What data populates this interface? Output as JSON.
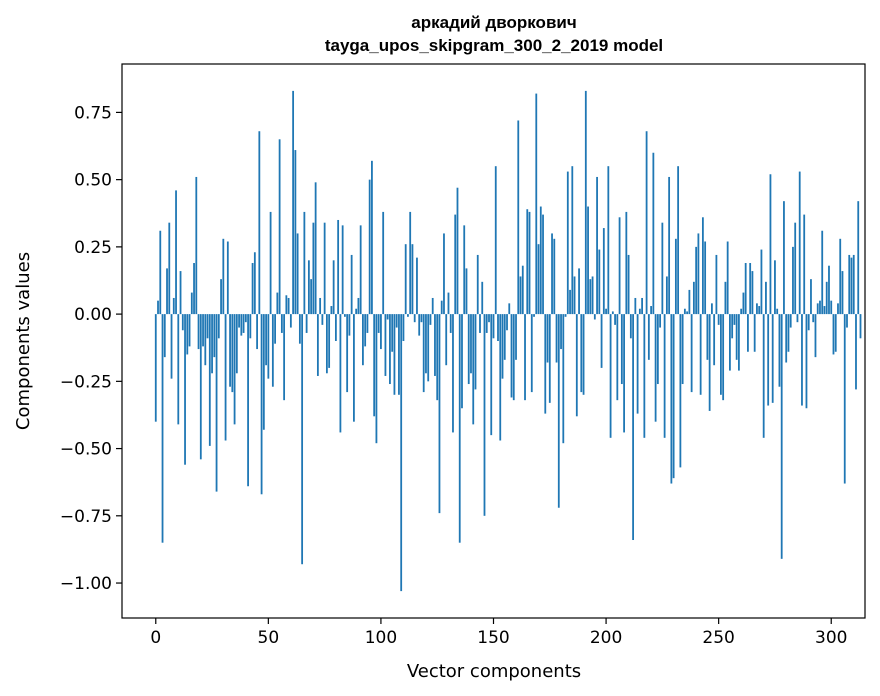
{
  "chart_data": {
    "type": "bar",
    "title": "аркадий дворкович",
    "subtitle": "tayga_upos_skipgram_300_2_2019 model",
    "xlabel": "Vector components",
    "ylabel": "Components values",
    "xlim": [
      -15,
      315
    ],
    "ylim": [
      -1.13,
      0.93
    ],
    "xticks": [
      0,
      50,
      100,
      150,
      200,
      250,
      300
    ],
    "yticks": [
      -1.0,
      -0.75,
      -0.5,
      -0.25,
      0.0,
      0.25,
      0.5,
      0.75
    ],
    "xtick_labels": [
      "0",
      "50",
      "100",
      "150",
      "200",
      "250",
      "300"
    ],
    "ytick_labels": [
      "−1.00",
      "−0.75",
      "−0.50",
      "−0.25",
      "0.00",
      "0.25",
      "0.50",
      "0.75"
    ],
    "grid": false,
    "bar_color": "#1f77b4",
    "x_start": 0,
    "values": [
      -0.4,
      0.05,
      0.31,
      -0.85,
      -0.16,
      0.17,
      0.34,
      -0.24,
      0.06,
      0.46,
      -0.41,
      0.16,
      -0.06,
      -0.56,
      -0.15,
      -0.12,
      0.08,
      0.19,
      0.51,
      -0.13,
      -0.54,
      -0.12,
      -0.19,
      -0.09,
      -0.49,
      -0.22,
      -0.16,
      -0.66,
      -0.09,
      0.13,
      0.28,
      -0.47,
      0.27,
      -0.27,
      -0.29,
      -0.41,
      -0.22,
      -0.05,
      -0.08,
      -0.07,
      -0.03,
      -0.64,
      -0.09,
      0.19,
      0.23,
      -0.13,
      0.68,
      -0.67,
      -0.43,
      -0.19,
      -0.24,
      0.38,
      -0.27,
      -0.11,
      0.08,
      0.65,
      -0.07,
      -0.32,
      0.07,
      0.06,
      -0.05,
      0.83,
      0.61,
      0.3,
      -0.11,
      -0.93,
      0.38,
      -0.07,
      0.2,
      0.13,
      0.34,
      0.49,
      -0.23,
      0.06,
      -0.04,
      0.34,
      -0.22,
      -0.2,
      0.03,
      0.2,
      -0.1,
      0.35,
      -0.44,
      0.33,
      -0.01,
      -0.29,
      -0.08,
      0.22,
      -0.4,
      0.02,
      0.06,
      0.33,
      -0.19,
      -0.12,
      -0.07,
      0.5,
      0.57,
      -0.38,
      -0.48,
      -0.07,
      -0.13,
      0.38,
      -0.23,
      -0.02,
      -0.26,
      -0.14,
      -0.3,
      -0.05,
      -0.3,
      -1.03,
      -0.1,
      0.26,
      -0.01,
      0.38,
      0.26,
      -0.03,
      0.21,
      -0.08,
      -0.03,
      -0.29,
      -0.22,
      -0.25,
      -0.04,
      0.06,
      -0.23,
      -0.32,
      -0.74,
      0.05,
      0.3,
      -0.19,
      0.08,
      -0.07,
      -0.44,
      0.37,
      0.47,
      -0.85,
      -0.35,
      0.33,
      0.17,
      -0.26,
      -0.22,
      -0.41,
      -0.28,
      0.22,
      -0.07,
      0.12,
      -0.75,
      -0.07,
      -0.03,
      -0.45,
      -0.09,
      0.55,
      -0.1,
      -0.47,
      -0.24,
      -0.17,
      -0.06,
      0.04,
      -0.31,
      -0.32,
      -0.17,
      0.72,
      0.14,
      0.18,
      -0.32,
      0.39,
      0.38,
      -0.29,
      -0.01,
      0.82,
      0.26,
      0.4,
      0.37,
      -0.37,
      -0.18,
      -0.33,
      0.3,
      0.28,
      -0.18,
      -0.72,
      -0.13,
      -0.48,
      -0.01,
      0.53,
      0.09,
      0.55,
      0.14,
      -0.38,
      0.17,
      -0.29,
      -0.3,
      0.83,
      0.4,
      0.13,
      0.14,
      -0.02,
      0.51,
      0.24,
      -0.2,
      0.32,
      0.02,
      0.55,
      -0.46,
      0.01,
      -0.04,
      -0.32,
      0.36,
      -0.26,
      -0.44,
      0.38,
      0.22,
      -0.09,
      -0.84,
      0.06,
      -0.37,
      0.02,
      0.06,
      -0.46,
      0.68,
      -0.17,
      0.03,
      0.6,
      -0.4,
      -0.26,
      -0.05,
      0.34,
      -0.46,
      0.14,
      0.51,
      -0.63,
      -0.61,
      0.28,
      0.55,
      -0.57,
      -0.26,
      0.02,
      0.01,
      0.09,
      -0.29,
      0.12,
      0.25,
      0.3,
      -0.3,
      0.36,
      0.27,
      -0.17,
      -0.36,
      0.04,
      -0.19,
      0.22,
      -0.04,
      -0.3,
      -0.32,
      0.12,
      0.27,
      -0.21,
      -0.09,
      -0.04,
      -0.17,
      -0.21,
      0.02,
      0.08,
      0.19,
      -0.14,
      0.19,
      0.16,
      -0.14,
      0.04,
      0.03,
      0.24,
      -0.46,
      0.12,
      -0.34,
      0.52,
      -0.33,
      0.2,
      0.02,
      -0.27,
      -0.91,
      0.42,
      -0.18,
      -0.14,
      -0.05,
      0.25,
      0.34,
      -0.03,
      0.53,
      -0.34,
      0.37,
      -0.35,
      -0.06,
      0.13,
      -0.03,
      -0.16,
      0.04,
      0.05,
      0.31,
      0.03,
      0.12,
      0.18,
      0.05,
      -0.15,
      -0.14,
      0.04,
      0.28,
      0.16,
      -0.63,
      -0.05,
      0.22,
      0.21,
      0.22,
      -0.28,
      0.42,
      -0.09
    ]
  }
}
